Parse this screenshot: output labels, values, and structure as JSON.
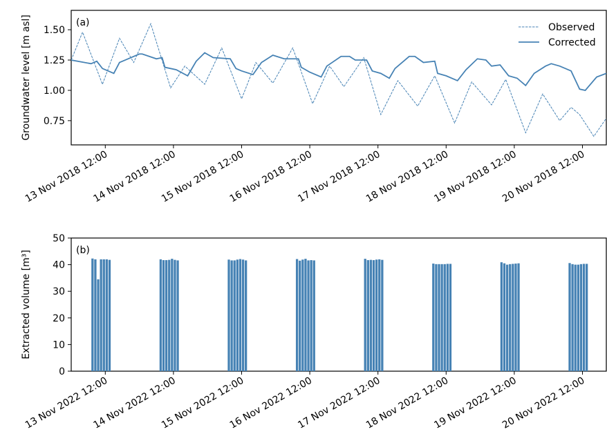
{
  "chart_data": [
    {
      "type": "line",
      "panel_label": "(a)",
      "y_label": "Groundwater level [m asl]",
      "xlim": [
        "2018-11-13T00:00",
        "2018-11-20T20:24"
      ],
      "xticks": [
        {
          "value": "2018-11-13T12:00",
          "label": "13 Nov 2018 12:00"
        },
        {
          "value": "2018-11-14T12:00",
          "label": "14 Nov 2018 12:00"
        },
        {
          "value": "2018-11-15T12:00",
          "label": "15 Nov 2018 12:00"
        },
        {
          "value": "2018-11-16T12:00",
          "label": "16 Nov 2018 12:00"
        },
        {
          "value": "2018-11-17T12:00",
          "label": "17 Nov 2018 12:00"
        },
        {
          "value": "2018-11-18T12:00",
          "label": "18 Nov 2018 12:00"
        },
        {
          "value": "2018-11-19T12:00",
          "label": "19 Nov 2018 12:00"
        },
        {
          "value": "2018-11-20T12:00",
          "label": "20 Nov 2018 12:00"
        }
      ],
      "ylim": [
        0.55,
        1.66
      ],
      "yticks": [
        0.75,
        {
          "value": 1.0,
          "label": "1.00"
        },
        1.25,
        {
          "value": 1.5,
          "label": "1.50"
        }
      ],
      "legend": "upper right",
      "series": [
        {
          "name": "Observed",
          "color": "#4682b4",
          "linestyle": "dashed",
          "x": [
            "2018-11-13T00:00",
            "2018-11-13T04:00",
            "2018-11-13T11:00",
            "2018-11-13T17:00",
            "2018-11-13T22:00",
            "2018-11-14T04:00",
            "2018-11-14T11:00",
            "2018-11-14T16:00",
            "2018-11-14T23:00",
            "2018-11-15T05:00",
            "2018-11-15T12:00",
            "2018-11-15T17:00",
            "2018-11-15T23:00",
            "2018-11-16T06:00",
            "2018-11-16T13:00",
            "2018-11-16T19:00",
            "2018-11-17T00:00",
            "2018-11-17T07:00",
            "2018-11-17T13:00",
            "2018-11-17T19:00",
            "2018-11-18T02:00",
            "2018-11-18T08:00",
            "2018-11-18T15:00",
            "2018-11-18T21:00",
            "2018-11-19T04:00",
            "2018-11-19T09:00",
            "2018-11-19T16:00",
            "2018-11-19T22:00",
            "2018-11-20T04:00",
            "2018-11-20T08:00",
            "2018-11-20T11:00",
            "2018-11-20T16:00",
            "2018-11-20T20:24"
          ],
          "values": [
            1.25,
            1.48,
            1.05,
            1.43,
            1.23,
            1.55,
            1.02,
            1.2,
            1.05,
            1.35,
            0.93,
            1.23,
            1.06,
            1.35,
            0.89,
            1.2,
            1.03,
            1.27,
            0.8,
            1.08,
            0.87,
            1.12,
            0.73,
            1.07,
            0.88,
            1.09,
            0.65,
            0.97,
            0.75,
            0.86,
            0.8,
            0.62,
            0.77
          ]
        },
        {
          "name": "Corrected",
          "color": "#4682b4",
          "linestyle": "solid",
          "x": [
            "2018-11-13T00:00",
            "2018-11-13T07:00",
            "2018-11-13T09:00",
            "2018-11-13T11:00",
            "2018-11-13T15:00",
            "2018-11-13T17:00",
            "2018-11-13T20:00",
            "2018-11-14T00:00",
            "2018-11-14T01:00",
            "2018-11-14T06:00",
            "2018-11-14T08:00",
            "2018-11-14T09:00",
            "2018-11-14T13:00",
            "2018-11-14T17:00",
            "2018-11-14T20:00",
            "2018-11-14T23:00",
            "2018-11-15T02:00",
            "2018-11-15T08:00",
            "2018-11-15T10:00",
            "2018-11-15T12:00",
            "2018-11-15T16:00",
            "2018-11-15T19:00",
            "2018-11-15T23:00",
            "2018-11-16T03:00",
            "2018-11-16T08:00",
            "2018-11-16T09:00",
            "2018-11-16T12:00",
            "2018-11-16T16:00",
            "2018-11-16T18:00",
            "2018-11-16T23:00",
            "2018-11-17T02:00",
            "2018-11-17T04:00",
            "2018-11-17T08:00",
            "2018-11-17T10:00",
            "2018-11-17T13:00",
            "2018-11-17T16:00",
            "2018-11-17T18:00",
            "2018-11-17T23:00",
            "2018-11-18T01:00",
            "2018-11-18T04:00",
            "2018-11-18T08:00",
            "2018-11-18T09:00",
            "2018-11-18T12:00",
            "2018-11-18T16:00",
            "2018-11-18T19:00",
            "2018-11-18T23:00",
            "2018-11-19T02:00",
            "2018-11-19T04:00",
            "2018-11-19T07:00",
            "2018-11-19T10:00",
            "2018-11-19T13:00",
            "2018-11-19T16:00",
            "2018-11-19T19:00",
            "2018-11-19T23:00",
            "2018-11-20T01:00",
            "2018-11-20T04:00",
            "2018-11-20T08:00",
            "2018-11-20T11:00",
            "2018-11-20T13:00",
            "2018-11-20T17:00",
            "2018-11-20T20:24"
          ],
          "values": [
            1.25,
            1.22,
            1.24,
            1.18,
            1.14,
            1.23,
            1.26,
            1.3,
            1.3,
            1.26,
            1.27,
            1.19,
            1.17,
            1.12,
            1.24,
            1.31,
            1.27,
            1.26,
            1.18,
            1.16,
            1.13,
            1.23,
            1.29,
            1.26,
            1.26,
            1.19,
            1.15,
            1.11,
            1.2,
            1.28,
            1.28,
            1.25,
            1.25,
            1.16,
            1.14,
            1.1,
            1.18,
            1.28,
            1.28,
            1.23,
            1.24,
            1.14,
            1.12,
            1.08,
            1.17,
            1.26,
            1.25,
            1.2,
            1.21,
            1.12,
            1.1,
            1.04,
            1.14,
            1.2,
            1.22,
            1.2,
            1.16,
            1.01,
            1.0,
            1.11,
            1.14
          ]
        }
      ]
    },
    {
      "type": "bar",
      "panel_label": "(b)",
      "y_label": "Extracted volume [m³]",
      "color": "#4682b4",
      "xlim": [
        "2022-11-13T00:00",
        "2022-11-20T20:24"
      ],
      "xticks": [
        {
          "value": "2022-11-13T12:00",
          "label": "13 Nov 2022 12:00"
        },
        {
          "value": "2022-11-14T12:00",
          "label": "14 Nov 2022 12:00"
        },
        {
          "value": "2022-11-15T12:00",
          "label": "15 Nov 2022 12:00"
        },
        {
          "value": "2022-11-16T12:00",
          "label": "16 Nov 2022 12:00"
        },
        {
          "value": "2022-11-17T12:00",
          "label": "17 Nov 2022 12:00"
        },
        {
          "value": "2022-11-18T12:00",
          "label": "18 Nov 2022 12:00"
        },
        {
          "value": "2022-11-19T12:00",
          "label": "19 Nov 2022 12:00"
        },
        {
          "value": "2022-11-20T12:00",
          "label": "20 Nov 2022 12:00"
        }
      ],
      "ylim": [
        0,
        50
      ],
      "yticks": [
        0,
        10,
        20,
        30,
        40,
        50
      ],
      "x": [
        "2022-11-13T07:30",
        "2022-11-13T08:30",
        "2022-11-13T09:30",
        "2022-11-13T10:30",
        "2022-11-13T11:30",
        "2022-11-13T12:30",
        "2022-11-13T13:30",
        "2022-11-14T07:30",
        "2022-11-14T08:30",
        "2022-11-14T09:30",
        "2022-11-14T10:30",
        "2022-11-14T11:30",
        "2022-11-14T12:30",
        "2022-11-14T13:30",
        "2022-11-15T07:30",
        "2022-11-15T08:30",
        "2022-11-15T09:30",
        "2022-11-15T10:30",
        "2022-11-15T11:30",
        "2022-11-15T12:30",
        "2022-11-15T13:30",
        "2022-11-16T07:30",
        "2022-11-16T08:30",
        "2022-11-16T09:30",
        "2022-11-16T10:30",
        "2022-11-16T11:30",
        "2022-11-16T12:30",
        "2022-11-16T13:30",
        "2022-11-17T07:30",
        "2022-11-17T08:30",
        "2022-11-17T09:30",
        "2022-11-17T10:30",
        "2022-11-17T11:30",
        "2022-11-17T12:30",
        "2022-11-17T13:30",
        "2022-11-18T07:30",
        "2022-11-18T08:30",
        "2022-11-18T09:30",
        "2022-11-18T10:30",
        "2022-11-18T11:30",
        "2022-11-18T12:30",
        "2022-11-18T13:30",
        "2022-11-19T07:30",
        "2022-11-19T08:30",
        "2022-11-19T09:30",
        "2022-11-19T10:30",
        "2022-11-19T11:30",
        "2022-11-19T12:30",
        "2022-11-19T13:30",
        "2022-11-20T07:30",
        "2022-11-20T08:30",
        "2022-11-20T09:30",
        "2022-11-20T10:30",
        "2022-11-20T11:30",
        "2022-11-20T12:30",
        "2022-11-20T13:30"
      ],
      "values": [
        42.3,
        42.0,
        34.5,
        42.0,
        42.0,
        42.0,
        41.8,
        42.0,
        41.7,
        41.7,
        41.8,
        42.2,
        41.8,
        41.6,
        41.9,
        41.6,
        41.6,
        41.9,
        42.1,
        41.9,
        41.6,
        42.1,
        41.5,
        41.9,
        42.2,
        41.6,
        41.7,
        41.6,
        42.2,
        41.7,
        41.8,
        41.7,
        41.9,
        42.0,
        41.8,
        40.4,
        40.2,
        40.2,
        40.2,
        40.2,
        40.3,
        40.3,
        40.9,
        40.5,
        40.0,
        40.2,
        40.3,
        40.4,
        40.5,
        40.6,
        40.2,
        40.0,
        40.0,
        40.2,
        40.3,
        40.3
      ]
    }
  ]
}
